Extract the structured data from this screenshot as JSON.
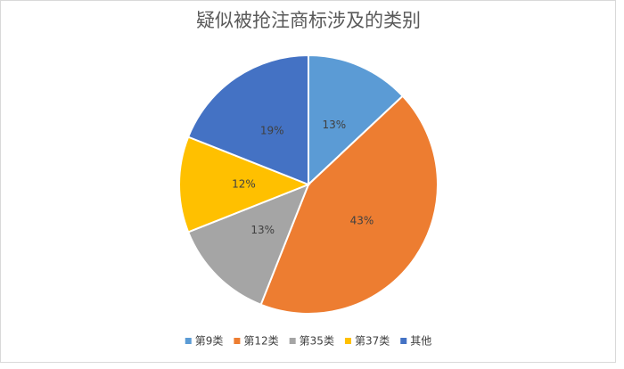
{
  "chart_data": {
    "type": "pie",
    "title": "疑似被抢注商标涉及的类别",
    "categories": [
      "第9类",
      "第12类",
      "第35类",
      "第37类",
      "其他"
    ],
    "values": [
      13,
      43,
      13,
      12,
      19
    ],
    "value_labels": [
      "13%",
      "43%",
      "13%",
      "12%",
      "19%"
    ],
    "colors": [
      "#5b9bd5",
      "#ed7d31",
      "#a5a5a5",
      "#ffc000",
      "#4472c4"
    ],
    "legend": "bottom"
  }
}
